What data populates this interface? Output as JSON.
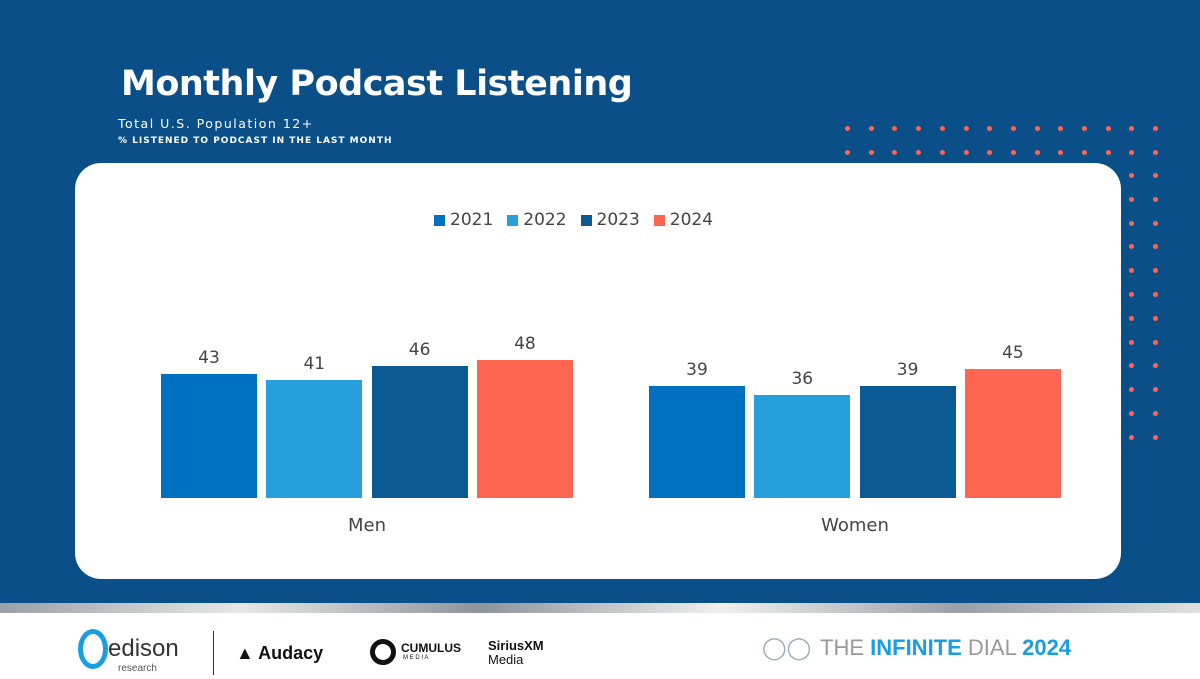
{
  "header": {
    "title": "Monthly Podcast Listening",
    "subtitle": "Total U.S. Population 12+",
    "note": "% LISTENED TO PODCAST IN THE LAST MONTH"
  },
  "colors": {
    "background": "#0a4f88",
    "accent_dots": "#ff6550"
  },
  "chart_data": {
    "type": "bar",
    "categories": [
      "Men",
      "Women"
    ],
    "series": [
      {
        "name": "2021",
        "color": "#0070c0",
        "values": [
          43,
          39
        ]
      },
      {
        "name": "2022",
        "color": "#25a0dc",
        "values": [
          41,
          36
        ]
      },
      {
        "name": "2023",
        "color": "#0c5a93",
        "values": [
          46,
          39
        ]
      },
      {
        "name": "2024",
        "color": "#ff6550",
        "values": [
          48,
          45
        ]
      }
    ],
    "legend": "top-center",
    "grid": false,
    "ylim": [
      0,
      50
    ]
  },
  "footer": {
    "logos": {
      "edison": "edison",
      "edison_sub": "research",
      "audacy": "Audacy",
      "cumulus": "CUMULUS",
      "cumulus_sub": "M E D I A",
      "sirius": "SiriusXM",
      "sirius_sub": "Media",
      "dial_a": "THE ",
      "dial_b": "INFINITE",
      "dial_c": " DIAL",
      "dial_year": "2024"
    }
  }
}
